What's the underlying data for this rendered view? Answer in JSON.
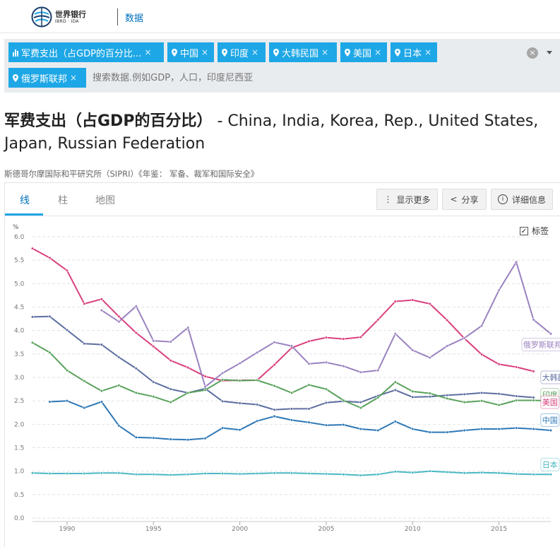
{
  "header": {
    "logo_line1": "世界银行",
    "logo_line2": "IBRD · IDA",
    "nav_label": "数据"
  },
  "filters": {
    "chips": [
      {
        "label": "军费支出（占GDP的百分比...",
        "kind": "indicator"
      },
      {
        "label": "中国",
        "kind": "country"
      },
      {
        "label": "印度",
        "kind": "country"
      },
      {
        "label": "大韩民国",
        "kind": "country"
      },
      {
        "label": "美国",
        "kind": "country"
      },
      {
        "label": "日本",
        "kind": "country"
      },
      {
        "label": "俄罗斯联邦",
        "kind": "country"
      }
    ],
    "remove_glyph": "×",
    "search_placeholder": "搜索数据.例如GDP，人口，印度尼西亚",
    "clear_glyph": "×"
  },
  "page": {
    "title_main": "军费支出（占GDP的百分比）",
    "title_rest": " - China, India, Korea, Rep., United States, Japan, Russian Federation",
    "source": "斯德哥尔摩国际和平研究所（SIPRI）《年鉴： 军备、裁军和国际安全》"
  },
  "tabs": [
    {
      "label": "线",
      "active": true
    },
    {
      "label": "柱",
      "active": false
    },
    {
      "label": "地图",
      "active": false
    }
  ],
  "actions": {
    "more": "显示更多",
    "share": "分享",
    "details": "详细信息",
    "more_icon": "⋮",
    "share_icon": "<",
    "details_icon": "i"
  },
  "legend_toggle": {
    "label": "标签",
    "checked": true,
    "check_glyph": "✓"
  },
  "colors": {
    "accent": "#1ea7e6",
    "link": "#0071bc",
    "china": "#2e78b7",
    "india": "#5aa25c",
    "korea": "#5c6ea0",
    "usa": "#d9407f",
    "japan": "#4ab8c3",
    "russia": "#9a82c0"
  },
  "chart_data": {
    "type": "line",
    "ylabel": "%",
    "ylim": [
      0,
      6.0
    ],
    "yticks": [
      "0.0",
      "0.5",
      "1.0",
      "1.5",
      "2.0",
      "2.5",
      "3.0",
      "3.5",
      "4.0",
      "4.5",
      "5.0",
      "5.5",
      "6.0"
    ],
    "xlim": [
      1988,
      2018
    ],
    "xticks": [
      "1990",
      "1995",
      "2000",
      "2005",
      "2010",
      "2015"
    ],
    "grid": true,
    "legend": "labels at line ends (right)",
    "series": [
      {
        "name": "美国",
        "color_key": "usa",
        "x": [
          1988,
          1989,
          1990,
          1991,
          1992,
          1993,
          1994,
          1995,
          1996,
          1997,
          1998,
          1999,
          2000,
          2001,
          2002,
          2003,
          2004,
          2005,
          2006,
          2007,
          2008,
          2009,
          2010,
          2011,
          2012,
          2013,
          2014,
          2015,
          2016,
          2017
        ],
        "values": [
          5.75,
          5.55,
          5.28,
          4.57,
          4.67,
          4.3,
          3.95,
          3.66,
          3.36,
          3.21,
          3.02,
          2.93,
          2.94,
          2.94,
          3.27,
          3.63,
          3.77,
          3.85,
          3.82,
          3.86,
          4.23,
          4.62,
          4.65,
          4.57,
          4.22,
          3.83,
          3.49,
          3.28,
          3.22,
          3.13
        ]
      },
      {
        "name": "俄罗斯联邦",
        "color_key": "russia",
        "x": [
          1992,
          1993,
          1994,
          1995,
          1996,
          1997,
          1998,
          1999,
          2000,
          2001,
          2002,
          2003,
          2004,
          2005,
          2006,
          2007,
          2008,
          2009,
          2010,
          2011,
          2012,
          2013,
          2014,
          2015,
          2016,
          2017,
          2018
        ],
        "values": [
          4.43,
          4.19,
          4.52,
          3.78,
          3.76,
          4.06,
          2.8,
          3.09,
          3.3,
          3.53,
          3.75,
          3.67,
          3.29,
          3.32,
          3.24,
          3.11,
          3.15,
          3.93,
          3.58,
          3.42,
          3.67,
          3.84,
          4.1,
          4.86,
          5.46,
          4.23,
          3.93
        ]
      },
      {
        "name": "大韩民国",
        "color_key": "korea",
        "x": [
          1988,
          1989,
          1990,
          1991,
          1992,
          1993,
          1994,
          1995,
          1996,
          1997,
          1998,
          1999,
          2000,
          2001,
          2002,
          2003,
          2004,
          2005,
          2006,
          2007,
          2008,
          2009,
          2010,
          2011,
          2012,
          2013,
          2014,
          2015,
          2016,
          2017
        ],
        "values": [
          4.29,
          4.3,
          4.01,
          3.72,
          3.7,
          3.43,
          3.19,
          2.9,
          2.75,
          2.67,
          2.76,
          2.49,
          2.45,
          2.42,
          2.31,
          2.33,
          2.33,
          2.46,
          2.49,
          2.47,
          2.61,
          2.73,
          2.58,
          2.59,
          2.62,
          2.64,
          2.67,
          2.65,
          2.6,
          2.57
        ]
      },
      {
        "name": "印度",
        "color_key": "india",
        "x": [
          1988,
          1989,
          1990,
          1991,
          1992,
          1993,
          1994,
          1995,
          1996,
          1997,
          1998,
          1999,
          2000,
          2001,
          2002,
          2003,
          2004,
          2005,
          2006,
          2007,
          2008,
          2009,
          2010,
          2011,
          2012,
          2013,
          2014,
          2015,
          2016,
          2017,
          2018
        ],
        "values": [
          3.74,
          3.53,
          3.15,
          2.92,
          2.71,
          2.83,
          2.67,
          2.59,
          2.47,
          2.67,
          2.73,
          2.95,
          2.93,
          2.94,
          2.82,
          2.67,
          2.84,
          2.75,
          2.51,
          2.35,
          2.57,
          2.9,
          2.7,
          2.66,
          2.55,
          2.47,
          2.5,
          2.41,
          2.51,
          2.51,
          2.5
        ]
      },
      {
        "name": "中国",
        "color_key": "china",
        "x": [
          1989,
          1990,
          1991,
          1992,
          1993,
          1994,
          1995,
          1996,
          1997,
          1998,
          1999,
          2000,
          2001,
          2002,
          2003,
          2004,
          2005,
          2006,
          2007,
          2008,
          2009,
          2010,
          2011,
          2012,
          2013,
          2014,
          2015,
          2016,
          2017,
          2018
        ],
        "values": [
          2.48,
          2.5,
          2.35,
          2.48,
          1.97,
          1.72,
          1.71,
          1.68,
          1.67,
          1.7,
          1.92,
          1.88,
          2.07,
          2.17,
          2.09,
          2.04,
          1.98,
          1.99,
          1.9,
          1.87,
          2.06,
          1.9,
          1.83,
          1.83,
          1.87,
          1.9,
          1.9,
          1.92,
          1.9,
          1.87
        ]
      },
      {
        "name": "日本",
        "color_key": "japan",
        "x": [
          1988,
          1989,
          1990,
          1991,
          1992,
          1993,
          1994,
          1995,
          1996,
          1997,
          1998,
          1999,
          2000,
          2001,
          2002,
          2003,
          2004,
          2005,
          2006,
          2007,
          2008,
          2009,
          2010,
          2011,
          2012,
          2013,
          2014,
          2015,
          2016,
          2017,
          2018
        ],
        "values": [
          0.96,
          0.95,
          0.95,
          0.95,
          0.96,
          0.96,
          0.93,
          0.93,
          0.92,
          0.93,
          0.95,
          0.95,
          0.94,
          0.95,
          0.96,
          0.96,
          0.95,
          0.94,
          0.93,
          0.91,
          0.93,
          0.99,
          0.97,
          1.0,
          0.98,
          0.96,
          0.97,
          0.96,
          0.94,
          0.93,
          0.93
        ]
      }
    ],
    "end_labels": [
      {
        "series": "俄罗斯联邦",
        "at_x": 2016.4,
        "at_y": 3.7
      },
      {
        "series": "大韩民国",
        "at_x": 2017.5,
        "at_y": 3.0
      },
      {
        "series": "印度",
        "at_x": 2017.5,
        "at_y": 2.63
      },
      {
        "series": "美国",
        "at_x": 2017.5,
        "at_y": 2.47
      },
      {
        "series": "中国",
        "at_x": 2017.5,
        "at_y": 2.09
      },
      {
        "series": "日本",
        "at_x": 2017.5,
        "at_y": 1.14
      }
    ]
  }
}
